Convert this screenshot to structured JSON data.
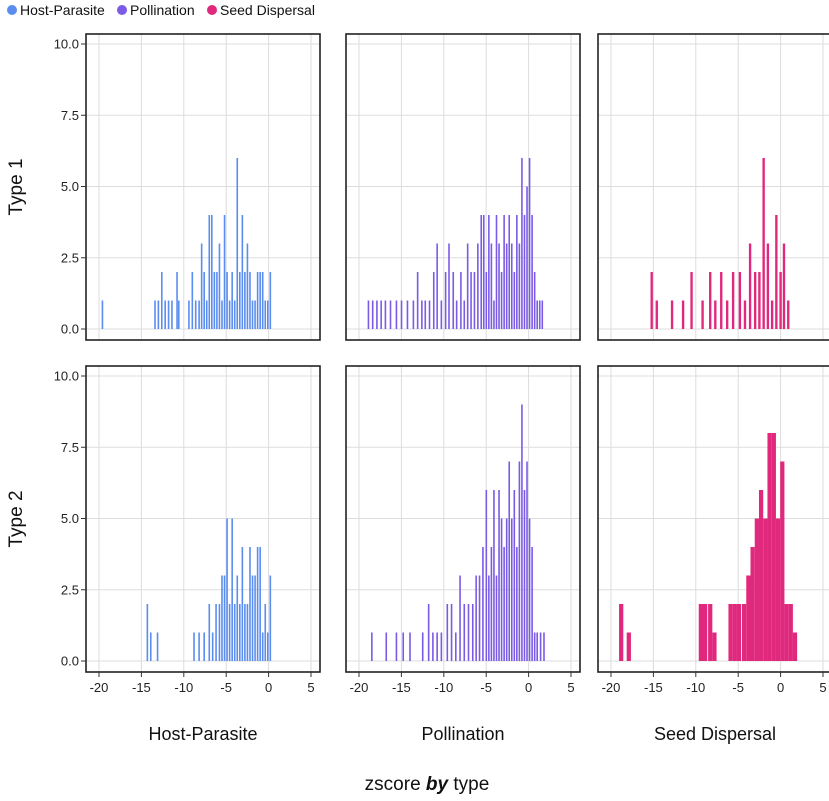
{
  "chart_data": {
    "type": "histogram",
    "title": "",
    "xlabel_prefix": "zscore ",
    "xlabel_by": "by",
    "xlabel_suffix": " type",
    "legend": {
      "position": "top-left",
      "entries": [
        {
          "name": "Host-Parasite",
          "color": "#5b8def"
        },
        {
          "name": "Pollination",
          "color": "#7b5be6"
        },
        {
          "name": "Seed Dispersal",
          "color": "#e0287d"
        }
      ]
    },
    "x_range": [
      -20.5,
      6
    ],
    "y_range": [
      -0.6,
      10.3
    ],
    "x_ticks": [
      -20,
      -15,
      -10,
      -5,
      0,
      5
    ],
    "y_ticks": [
      0.0,
      2.5,
      5.0,
      7.5,
      10.0
    ],
    "y_tick_labels": [
      "0.0",
      "2.5",
      "5.0",
      "7.5",
      "10.0"
    ],
    "grid": true,
    "columns": [
      "Host-Parasite",
      "Pollination",
      "Seed Dispersal"
    ],
    "rows": [
      "Type 1",
      "Type 2"
    ],
    "panels": [
      {
        "row": "Type 1",
        "column": "Host-Parasite",
        "color": "#5b8def",
        "bin_width": 0.18,
        "bars": [
          [
            -19.6,
            1
          ],
          [
            -13.4,
            1
          ],
          [
            -13.0,
            1
          ],
          [
            -12.6,
            2
          ],
          [
            -12.2,
            1
          ],
          [
            -11.8,
            1
          ],
          [
            -11.4,
            1
          ],
          [
            -10.8,
            2
          ],
          [
            -10.6,
            1
          ],
          [
            -9.4,
            1
          ],
          [
            -9.0,
            2
          ],
          [
            -8.6,
            1
          ],
          [
            -8.2,
            1
          ],
          [
            -7.9,
            3
          ],
          [
            -7.6,
            2
          ],
          [
            -7.3,
            1
          ],
          [
            -7.0,
            4
          ],
          [
            -6.7,
            4
          ],
          [
            -6.4,
            2
          ],
          [
            -6.1,
            2
          ],
          [
            -5.8,
            3
          ],
          [
            -5.5,
            1
          ],
          [
            -5.2,
            4
          ],
          [
            -4.9,
            2
          ],
          [
            -4.6,
            1
          ],
          [
            -4.3,
            2
          ],
          [
            -4.0,
            1
          ],
          [
            -3.7,
            6
          ],
          [
            -3.4,
            2
          ],
          [
            -3.1,
            4
          ],
          [
            -2.8,
            2
          ],
          [
            -2.5,
            3
          ],
          [
            -2.2,
            2
          ],
          [
            -1.9,
            1
          ],
          [
            -1.6,
            1
          ],
          [
            -1.3,
            2
          ],
          [
            -1.0,
            2
          ],
          [
            -0.7,
            2
          ],
          [
            -0.4,
            1
          ],
          [
            -0.1,
            1
          ],
          [
            0.2,
            2
          ]
        ]
      },
      {
        "row": "Type 1",
        "column": "Pollination",
        "color": "#7b5be6",
        "bin_width": 0.16,
        "bars": [
          [
            -18.9,
            1
          ],
          [
            -18.4,
            1
          ],
          [
            -17.9,
            1
          ],
          [
            -17.4,
            1
          ],
          [
            -16.9,
            1
          ],
          [
            -16.3,
            1
          ],
          [
            -15.6,
            1
          ],
          [
            -15.0,
            1
          ],
          [
            -14.3,
            1
          ],
          [
            -13.6,
            1
          ],
          [
            -13.1,
            2
          ],
          [
            -12.6,
            1
          ],
          [
            -12.2,
            1
          ],
          [
            -11.7,
            1
          ],
          [
            -11.2,
            2
          ],
          [
            -10.8,
            3
          ],
          [
            -10.3,
            1
          ],
          [
            -9.8,
            2
          ],
          [
            -9.4,
            3
          ],
          [
            -8.9,
            2
          ],
          [
            -8.5,
            1
          ],
          [
            -8.0,
            2
          ],
          [
            -7.6,
            1
          ],
          [
            -7.2,
            3
          ],
          [
            -6.8,
            2
          ],
          [
            -6.4,
            2
          ],
          [
            -6.0,
            3
          ],
          [
            -5.6,
            4
          ],
          [
            -5.3,
            4
          ],
          [
            -5.0,
            2
          ],
          [
            -4.7,
            4
          ],
          [
            -4.4,
            3
          ],
          [
            -4.1,
            1
          ],
          [
            -3.8,
            4
          ],
          [
            -3.5,
            3
          ],
          [
            -3.2,
            2
          ],
          [
            -2.9,
            4
          ],
          [
            -2.6,
            3
          ],
          [
            -2.3,
            4
          ],
          [
            -2.0,
            3
          ],
          [
            -1.7,
            2
          ],
          [
            -1.4,
            4
          ],
          [
            -1.1,
            3
          ],
          [
            -0.8,
            6
          ],
          [
            -0.5,
            4
          ],
          [
            -0.2,
            5
          ],
          [
            0.1,
            6
          ],
          [
            0.4,
            4
          ],
          [
            0.7,
            2
          ],
          [
            1.0,
            1
          ],
          [
            1.3,
            1
          ],
          [
            1.6,
            1
          ]
        ]
      },
      {
        "row": "Type 1",
        "column": "Seed Dispersal",
        "color": "#e0287d",
        "bin_width": 0.28,
        "bars": [
          [
            -15.2,
            2
          ],
          [
            -14.6,
            1
          ],
          [
            -12.8,
            1
          ],
          [
            -11.5,
            1
          ],
          [
            -10.5,
            2
          ],
          [
            -9.2,
            1
          ],
          [
            -8.3,
            2
          ],
          [
            -7.7,
            1
          ],
          [
            -7.0,
            2
          ],
          [
            -6.3,
            1
          ],
          [
            -5.6,
            2
          ],
          [
            -4.8,
            2
          ],
          [
            -4.2,
            1
          ],
          [
            -3.6,
            3
          ],
          [
            -3.0,
            2
          ],
          [
            -2.5,
            2
          ],
          [
            -2.0,
            6
          ],
          [
            -1.5,
            3
          ],
          [
            -1.0,
            1
          ],
          [
            -0.5,
            4
          ],
          [
            0.0,
            2
          ],
          [
            0.4,
            3
          ],
          [
            0.9,
            1
          ]
        ]
      },
      {
        "row": "Type 2",
        "column": "Host-Parasite",
        "color": "#5b8def",
        "bin_width": 0.18,
        "bars": [
          [
            -14.3,
            2
          ],
          [
            -13.9,
            1
          ],
          [
            -13.1,
            1
          ],
          [
            -8.8,
            1
          ],
          [
            -8.2,
            1
          ],
          [
            -7.6,
            1
          ],
          [
            -7.0,
            2
          ],
          [
            -6.6,
            1
          ],
          [
            -6.2,
            2
          ],
          [
            -5.8,
            2
          ],
          [
            -5.5,
            3
          ],
          [
            -5.2,
            3
          ],
          [
            -4.9,
            5
          ],
          [
            -4.6,
            2
          ],
          [
            -4.3,
            5
          ],
          [
            -4.0,
            2
          ],
          [
            -3.7,
            3
          ],
          [
            -3.4,
            2
          ],
          [
            -3.1,
            4
          ],
          [
            -2.8,
            2
          ],
          [
            -2.5,
            2
          ],
          [
            -2.2,
            4
          ],
          [
            -1.9,
            3
          ],
          [
            -1.6,
            3
          ],
          [
            -1.3,
            4
          ],
          [
            -1.0,
            4
          ],
          [
            -0.7,
            1
          ],
          [
            -0.4,
            2
          ],
          [
            -0.1,
            1
          ],
          [
            0.2,
            3
          ]
        ]
      },
      {
        "row": "Type 2",
        "column": "Pollination",
        "color": "#7b5be6",
        "bin_width": 0.16,
        "bars": [
          [
            -18.5,
            1
          ],
          [
            -16.8,
            1
          ],
          [
            -15.6,
            1
          ],
          [
            -14.8,
            1
          ],
          [
            -14.0,
            1
          ],
          [
            -12.5,
            1
          ],
          [
            -11.8,
            2
          ],
          [
            -11.3,
            1
          ],
          [
            -10.8,
            1
          ],
          [
            -10.3,
            1
          ],
          [
            -9.6,
            2
          ],
          [
            -9.1,
            2
          ],
          [
            -8.6,
            1
          ],
          [
            -8.1,
            3
          ],
          [
            -7.6,
            2
          ],
          [
            -7.1,
            2
          ],
          [
            -6.6,
            2
          ],
          [
            -6.2,
            3
          ],
          [
            -5.8,
            3
          ],
          [
            -5.4,
            4
          ],
          [
            -5.0,
            6
          ],
          [
            -4.7,
            3
          ],
          [
            -4.4,
            4
          ],
          [
            -4.1,
            6
          ],
          [
            -3.8,
            3
          ],
          [
            -3.5,
            6
          ],
          [
            -3.2,
            5
          ],
          [
            -2.9,
            4
          ],
          [
            -2.6,
            5
          ],
          [
            -2.3,
            7
          ],
          [
            -2.0,
            5
          ],
          [
            -1.7,
            6
          ],
          [
            -1.4,
            4
          ],
          [
            -1.1,
            7
          ],
          [
            -0.8,
            9
          ],
          [
            -0.5,
            6
          ],
          [
            -0.2,
            7
          ],
          [
            0.1,
            5
          ],
          [
            0.4,
            4
          ],
          [
            0.7,
            1
          ],
          [
            1.0,
            1
          ],
          [
            1.4,
            1
          ],
          [
            1.8,
            1
          ]
        ]
      },
      {
        "row": "Type 2",
        "column": "Seed Dispersal",
        "color": "#e0287d",
        "bin_width": 0.5,
        "bars": [
          [
            -18.8,
            2
          ],
          [
            -17.9,
            1
          ],
          [
            -9.4,
            2
          ],
          [
            -8.9,
            2
          ],
          [
            -8.3,
            2
          ],
          [
            -7.8,
            1
          ],
          [
            -5.9,
            2
          ],
          [
            -5.4,
            2
          ],
          [
            -4.9,
            2
          ],
          [
            -4.3,
            2
          ],
          [
            -3.8,
            3
          ],
          [
            -3.3,
            4
          ],
          [
            -2.8,
            5
          ],
          [
            -2.3,
            6
          ],
          [
            -1.8,
            5
          ],
          [
            -1.3,
            8
          ],
          [
            -0.8,
            8
          ],
          [
            -0.3,
            5
          ],
          [
            0.2,
            7
          ],
          [
            0.7,
            2
          ],
          [
            1.2,
            2
          ],
          [
            1.7,
            1
          ]
        ]
      }
    ]
  }
}
